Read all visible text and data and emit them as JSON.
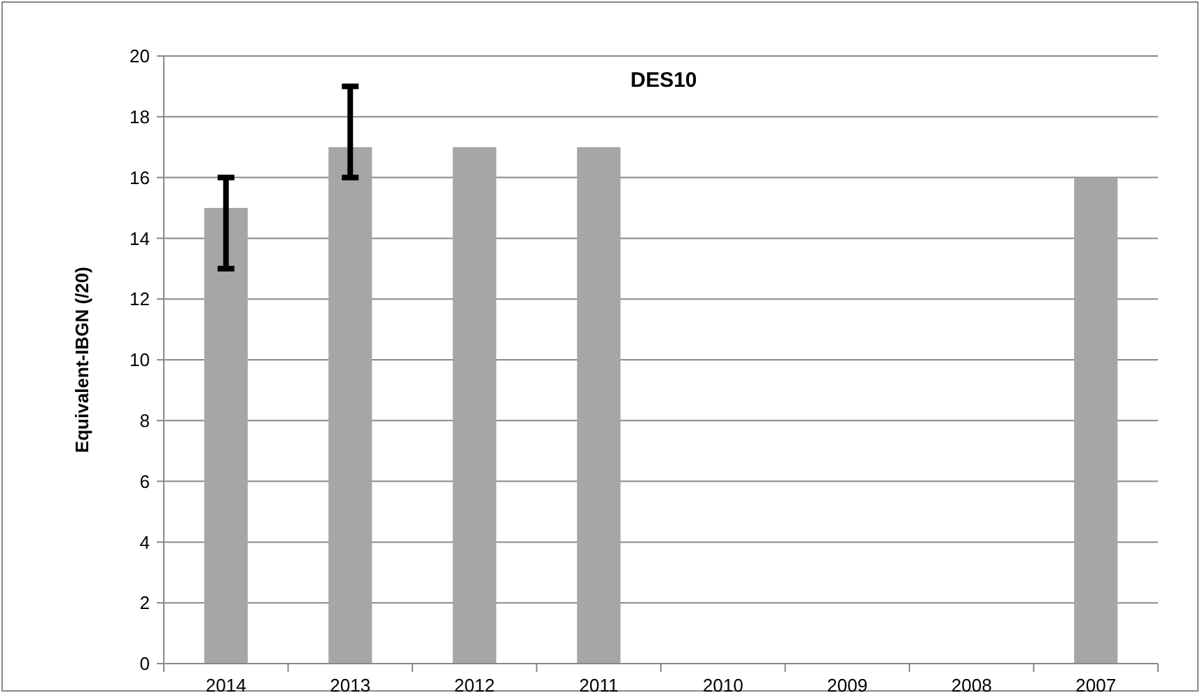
{
  "chart_data": {
    "type": "bar",
    "title": "DES10",
    "ylabel": "Equivalent-IBGN (/20)",
    "categories": [
      "2014",
      "2013",
      "2012",
      "2011",
      "2010",
      "2009",
      "2008",
      "2007"
    ],
    "values": [
      15,
      17,
      17,
      17,
      null,
      null,
      null,
      16
    ],
    "errors": [
      [
        13,
        16
      ],
      [
        16,
        19
      ],
      null,
      null,
      null,
      null,
      null,
      null
    ],
    "color": "#a6a6a6",
    "ylim": [
      0,
      20
    ],
    "yticks": [
      0,
      2,
      4,
      6,
      8,
      10,
      12,
      14,
      16,
      18,
      20
    ],
    "grid": "y"
  }
}
